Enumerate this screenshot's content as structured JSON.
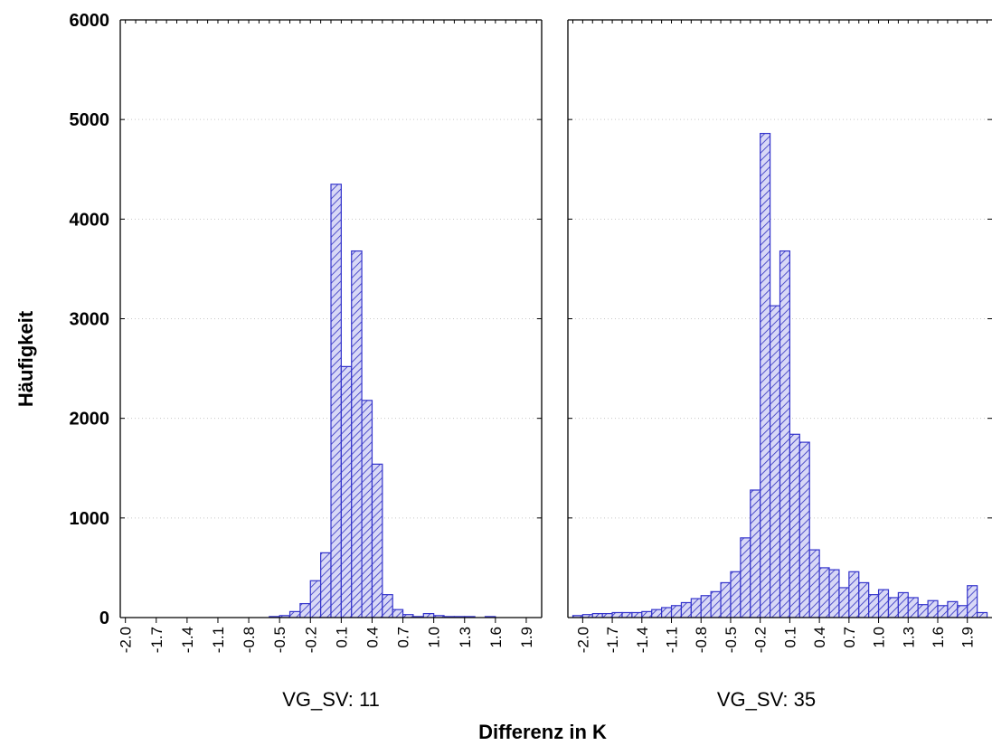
{
  "chart_data": {
    "type": "bar",
    "ylabel": "Häufigkeit",
    "xlabel": "Differenz in K",
    "ylim": [
      0,
      6000
    ],
    "yticks": [
      0,
      1000,
      2000,
      3000,
      4000,
      5000,
      6000
    ],
    "ytick_labels": [
      "0",
      "1000",
      "2000",
      "3000",
      "4000",
      "5000",
      "6000"
    ],
    "grid": "horizontal dotted",
    "bar_fill": "diagonal hatch",
    "colors": {
      "bar_stroke": "#3333cc",
      "bar_fill": "#d8d8f6",
      "hatch": "#2f2fbf",
      "axis": "#000000",
      "grid": "#c8c8c8"
    },
    "panels": [
      {
        "label": "VG_SV: 11",
        "xlim": [
          -2.05,
          2.05
        ],
        "bin_width": 0.1,
        "bin_starts": [
          -2.1,
          -2.0,
          -1.9,
          -1.8,
          -1.7,
          -1.6,
          -1.5,
          -1.4,
          -1.3,
          -1.2,
          -1.1,
          -1.0,
          -0.9,
          -0.8,
          -0.7,
          -0.6,
          -0.5,
          -0.4,
          -0.3,
          -0.2,
          -0.1,
          0.0,
          0.1,
          0.2,
          0.3,
          0.4,
          0.5,
          0.6,
          0.7,
          0.8,
          0.9,
          1.0,
          1.1,
          1.2,
          1.3,
          1.4,
          1.5,
          1.6,
          1.7,
          1.8,
          1.9
        ],
        "values": [
          0,
          0,
          0,
          0,
          0,
          0,
          0,
          0,
          0,
          0,
          0,
          0,
          0,
          0,
          0,
          10,
          20,
          60,
          140,
          370,
          650,
          4350,
          2520,
          3680,
          2180,
          1540,
          230,
          80,
          30,
          10,
          40,
          20,
          10,
          10,
          10,
          0,
          10,
          0,
          0,
          0,
          0
        ],
        "xtick_values": [
          -2.0,
          -1.7,
          -1.4,
          -1.1,
          -0.8,
          -0.5,
          -0.2,
          0.1,
          0.4,
          0.7,
          1.0,
          1.3,
          1.6,
          1.9
        ],
        "xtick_labels": [
          "-2.0",
          "-1.7",
          "-1.4",
          "-1.1",
          "-0.8",
          "-0.5",
          "-0.2",
          "0.1",
          "0.4",
          "0.7",
          "1.0",
          "1.3",
          "1.6",
          "1.9"
        ]
      },
      {
        "label": "VG_SV: 35",
        "xlim": [
          -2.15,
          2.15
        ],
        "bin_width": 0.1,
        "bin_starts": [
          -2.1,
          -2.0,
          -1.9,
          -1.8,
          -1.7,
          -1.6,
          -1.5,
          -1.4,
          -1.3,
          -1.2,
          -1.1,
          -1.0,
          -0.9,
          -0.8,
          -0.7,
          -0.6,
          -0.5,
          -0.4,
          -0.3,
          -0.2,
          -0.1,
          0.0,
          0.1,
          0.2,
          0.3,
          0.4,
          0.5,
          0.6,
          0.7,
          0.8,
          0.9,
          1.0,
          1.1,
          1.2,
          1.3,
          1.4,
          1.5,
          1.6,
          1.7,
          1.8,
          1.9,
          2.0
        ],
        "values": [
          20,
          30,
          40,
          40,
          50,
          50,
          50,
          60,
          80,
          100,
          120,
          150,
          190,
          220,
          260,
          350,
          460,
          800,
          1280,
          4860,
          3130,
          3680,
          1840,
          1760,
          680,
          500,
          480,
          300,
          460,
          350,
          230,
          280,
          200,
          250,
          200,
          130,
          170,
          120,
          160,
          120,
          320,
          50
        ],
        "xtick_values": [
          -2.0,
          -1.7,
          -1.4,
          -1.1,
          -0.8,
          -0.5,
          -0.2,
          0.1,
          0.4,
          0.7,
          1.0,
          1.3,
          1.6,
          1.9
        ],
        "xtick_labels": [
          "-2.0",
          "-1.7",
          "-1.4",
          "-1.1",
          "-0.8",
          "-0.5",
          "-0.2",
          "0.1",
          "0.4",
          "0.7",
          "1.0",
          "1.3",
          "1.6",
          "1.9"
        ]
      }
    ]
  }
}
